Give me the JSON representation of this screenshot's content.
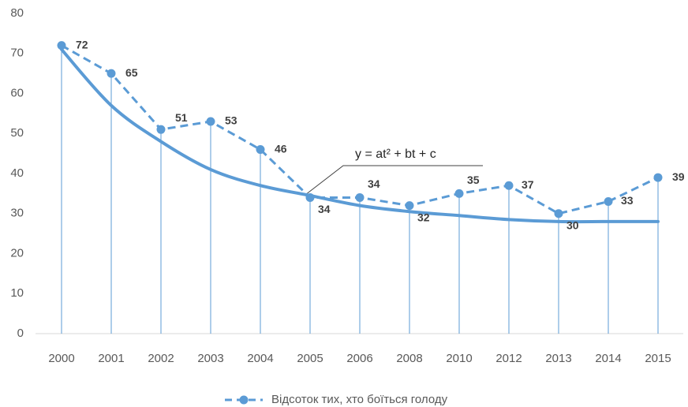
{
  "chart_data": {
    "type": "line",
    "categories": [
      "2000",
      "2001",
      "2002",
      "2003",
      "2004",
      "2005",
      "2006",
      "2008",
      "2010",
      "2012",
      "2013",
      "2014",
      "2015"
    ],
    "series": [
      {
        "name": "Відсоток тих, хто боїться голоду",
        "color": "#5b9bd5",
        "values": [
          72,
          65,
          51,
          53,
          46,
          34,
          34,
          32,
          35,
          37,
          30,
          33,
          39
        ]
      }
    ],
    "trendline": {
      "color": "#5b9bd5",
      "values": [
        71,
        57,
        48,
        41,
        37,
        34.5,
        32,
        30.5,
        29.5,
        28.5,
        28,
        28,
        28
      ]
    },
    "annotation": "y = at² + bt + c",
    "ylim": [
      0,
      80
    ],
    "yticks": [
      0,
      10,
      20,
      30,
      40,
      50,
      60,
      70,
      80
    ],
    "grid": false,
    "legend": "bottom"
  }
}
